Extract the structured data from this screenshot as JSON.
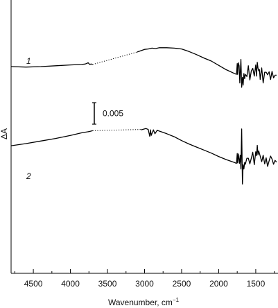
{
  "chart_data": {
    "type": "line",
    "title": "",
    "xlabel": "Wavenumber, cm",
    "xlabel_superscript": "−1",
    "ylabel": "ΔA",
    "xlim": [
      4800,
      1200
    ],
    "x_reversed": true,
    "x_ticks": [
      {
        "value": 4500,
        "label": "4500"
      },
      {
        "value": 4000,
        "label": "4000"
      },
      {
        "value": 3500,
        "label": "3500"
      },
      {
        "value": 3000,
        "label": "3000"
      },
      {
        "value": 2500,
        "label": "2500"
      },
      {
        "value": 2000,
        "label": "2000"
      },
      {
        "value": 1500,
        "label": "1500"
      }
    ],
    "y_ticks_shown": false,
    "grid": false,
    "legend": "none",
    "scale_bar": {
      "value": 0.005,
      "label": "0.005"
    },
    "series": [
      {
        "label": "1",
        "color": "#000000",
        "segments": [
          {
            "style": "solid",
            "x": [
              4800,
              4600,
              4400,
              4200,
              4000,
              3850,
              3800,
              3760,
              3740,
              3720,
              3700
            ],
            "y": [
              0.0208,
              0.0207,
              0.0208,
              0.021,
              0.0212,
              0.0213,
              0.0214,
              0.0217,
              0.0213,
              0.0214,
              0.0213
            ]
          },
          {
            "style": "dotted",
            "x": [
              3700,
              3100
            ],
            "y": [
              0.0213,
              0.0242
            ]
          },
          {
            "style": "solid",
            "x": [
              3100,
              3000,
              2950,
              2900,
              2850,
              2800,
              2750,
              2700,
              2600,
              2500,
              2400,
              2300,
              2200,
              2100,
              2000,
              1900,
              1800,
              1760,
              1750,
              1745,
              1735,
              1725,
              1715,
              1700,
              1690,
              1680,
              1670,
              1660,
              1650,
              1640,
              1620,
              1600,
              1580,
              1560,
              1540,
              1520,
              1500,
              1490,
              1480,
              1470,
              1460,
              1450,
              1440,
              1420,
              1400,
              1380,
              1360,
              1340,
              1320,
              1300,
              1280,
              1260,
              1240,
              1220
            ],
            "y": [
              0.0242,
              0.0248,
              0.0249,
              0.0251,
              0.025,
              0.0252,
              0.0252,
              0.0252,
              0.0251,
              0.0249,
              0.0243,
              0.0236,
              0.0228,
              0.0221,
              0.0211,
              0.0201,
              0.0193,
              0.019,
              0.0215,
              0.019,
              0.0217,
              0.021,
              0.017,
              0.0225,
              0.016,
              0.0183,
              0.0165,
              0.0192,
              0.018,
              0.019,
              0.0185,
              0.021,
              0.0177,
              0.0198,
              0.0204,
              0.0186,
              0.0212,
              0.0186,
              0.0218,
              0.0205,
              0.0198,
              0.0201,
              0.0178,
              0.0205,
              0.017,
              0.0195,
              0.0195,
              0.0189,
              0.0196,
              0.0178,
              0.0197,
              0.0182,
              0.0188,
              0.0188
            ]
          }
        ]
      },
      {
        "label": "2",
        "color": "#000000",
        "segments": [
          {
            "style": "solid",
            "x": [
              4800,
              4600,
              4400,
              4200,
              4000,
              3850,
              3750,
              3700
            ],
            "y": [
              0.0024,
              0.0029,
              0.0035,
              0.0041,
              0.0048,
              0.0054,
              0.0057,
              0.0059
            ]
          },
          {
            "style": "dotted",
            "x": [
              3700,
              3050
            ],
            "y": [
              0.0059,
              0.0062
            ]
          },
          {
            "style": "solid",
            "x": [
              3050,
              2980,
              2950,
              2930,
              2920,
              2910,
              2880,
              2860,
              2830,
              2800,
              2700,
              2600,
              2500,
              2400,
              2300,
              2200,
              2100,
              2000,
              1900,
              1800,
              1760,
              1750,
              1745,
              1735,
              1720,
              1710,
              1700,
              1690,
              1680,
              1670,
              1660,
              1650,
              1640,
              1620,
              1600,
              1580,
              1560,
              1540,
              1520,
              1500,
              1490,
              1480,
              1470,
              1460,
              1440,
              1420,
              1400,
              1380,
              1360,
              1340,
              1320,
              1300,
              1280,
              1260,
              1240,
              1220
            ],
            "y": [
              0.0061,
              0.0064,
              0.0062,
              0.0046,
              0.0061,
              0.0048,
              0.0061,
              0.0052,
              0.006,
              0.0058,
              0.0052,
              0.0045,
              0.0036,
              0.0028,
              0.0021,
              0.0014,
              0.0007,
              -0.0001,
              -0.0008,
              -0.0014,
              -0.0017,
              0.0006,
              -0.0016,
              0.0005,
              -0.0017,
              0.0002,
              -0.003,
              0.0063,
              -0.0065,
              -0.002,
              -0.003,
              -0.0015,
              -0.0019,
              -0.0005,
              -0.0005,
              -0.0018,
              -0.0005,
              0.0009,
              -0.002,
              0.001,
              0.0001,
              0.0025,
              0.0003,
              0.0012,
              0.0,
              -0.0013,
              0.0002,
              -0.0018,
              -0.0004,
              -0.0024,
              -0.0011,
              0.0,
              -0.0007,
              -0.0019,
              -0.001,
              -0.0014
            ]
          }
        ]
      }
    ]
  }
}
